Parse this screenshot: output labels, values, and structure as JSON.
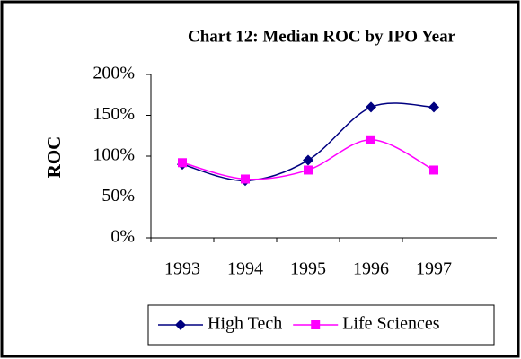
{
  "chart_data": {
    "type": "line",
    "title": "Chart 12: Median ROC by IPO Year",
    "y_label": "ROC",
    "categories": [
      "1993",
      "1994",
      "1995",
      "1996",
      "1997"
    ],
    "series": [
      {
        "name": "High Tech",
        "color": "#000080",
        "marker": "diamond",
        "values": [
          90,
          70,
          95,
          160,
          160
        ]
      },
      {
        "name": "Life Sciences",
        "color": "#ff00ff",
        "marker": "square",
        "values": [
          92,
          72,
          83,
          120,
          83
        ]
      }
    ],
    "ylim": [
      0,
      200
    ],
    "yticks": [
      {
        "value": 0,
        "label": "0%"
      },
      {
        "value": 50,
        "label": "50%"
      },
      {
        "value": 100,
        "label": "100%"
      },
      {
        "value": 150,
        "label": "150%"
      },
      {
        "value": 200,
        "label": "200%"
      }
    ],
    "legend": "bottom",
    "smooth": true
  }
}
